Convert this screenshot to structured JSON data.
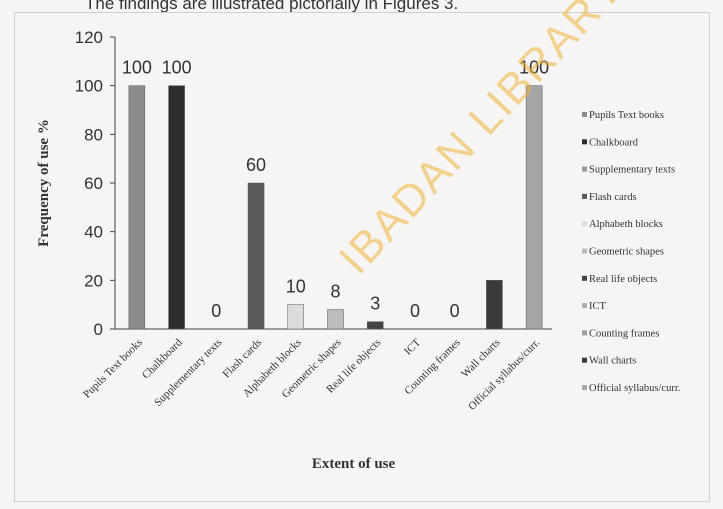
{
  "caption": "The findings are illustrated pictorially in Figures 3.",
  "watermark": "IBADAN LIBRARY",
  "chart_data": {
    "type": "bar",
    "ylabel": "Frequency of use %",
    "xlabel": "Extent of use",
    "ylim": [
      0,
      120
    ],
    "yticks": [
      0,
      20,
      40,
      60,
      80,
      100,
      120
    ],
    "grid": false,
    "legend_position": "right",
    "categories": [
      "Pupils Text books",
      "Chalkboard",
      "Supplementary texts",
      "Flash cards",
      "Alphabeth blocks",
      "Geometric shapes",
      "Real life objects",
      "ICT",
      "Counting frames",
      "Wall charts",
      "Official syllabus/curr."
    ],
    "legend_labels": [
      "Pupils Text books",
      "Chalkboard",
      "Supplementary texts",
      "Flash cards",
      "Alphabeth blocks",
      "Geometric shapes",
      "Real life objects",
      "ICT",
      "Counting frames",
      "Wall charts",
      "Official syllabus/curr."
    ],
    "values": [
      100,
      100,
      0,
      60,
      10,
      8,
      3,
      0,
      0,
      20,
      100
    ],
    "data_labels": [
      "100",
      "100",
      "0",
      "60",
      "10",
      "8",
      "3",
      "0",
      "0",
      "",
      "100"
    ],
    "colors": [
      "#8c8c8c",
      "#2e2e2e",
      "#9a9a9a",
      "#5a5a5a",
      "#dcdcdc",
      "#bdbdbd",
      "#444444",
      "#b0b0b0",
      "#9e9e9e",
      "#3a3a3a",
      "#a6a6a6"
    ]
  }
}
